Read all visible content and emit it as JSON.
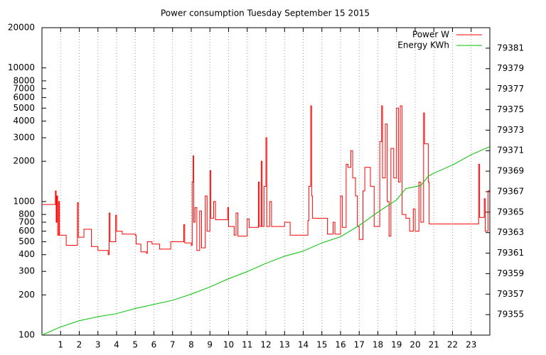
{
  "chart_data": {
    "type": "line",
    "title": "Power consumption Tuesday September 15 2015",
    "xlim": [
      0,
      24
    ],
    "xticks": [
      1,
      2,
      3,
      4,
      5,
      6,
      7,
      8,
      9,
      10,
      11,
      12,
      13,
      14,
      15,
      16,
      17,
      18,
      19,
      20,
      21,
      22,
      23
    ],
    "ylim": [
      100,
      20000
    ],
    "yticks": [
      100,
      200,
      300,
      400,
      500,
      600,
      700,
      800,
      1000,
      2000,
      3000,
      4000,
      5000,
      6000,
      7000,
      8000,
      10000,
      20000
    ],
    "y_scale": "log",
    "y2lim": [
      79353,
      79383
    ],
    "y2ticks": [
      79355,
      79357,
      79359,
      79361,
      79363,
      79365,
      79367,
      79369,
      79371,
      79373,
      79375,
      79377,
      79379,
      79381
    ],
    "grid": "x",
    "legend": "top-right",
    "series": [
      {
        "name": "Power W",
        "color": "#ff0000",
        "steps": true,
        "x": [
          0,
          0.72,
          0.76,
          0.8,
          0.84,
          0.9,
          0.94,
          1.3,
          1.9,
          1.95,
          2.25,
          2.65,
          3.0,
          3.55,
          3.6,
          3.65,
          3.95,
          4.0,
          4.3,
          5.0,
          5.05,
          5.3,
          5.6,
          5.65,
          5.9,
          6.3,
          6.9,
          7.6,
          7.65,
          8.0,
          8.05,
          8.1,
          8.13,
          8.2,
          8.3,
          8.45,
          8.55,
          8.75,
          8.85,
          9.0,
          9.05,
          9.2,
          9.3,
          9.95,
          10.0,
          10.3,
          10.4,
          10.5,
          11.0,
          11.1,
          11.6,
          11.65,
          11.75,
          11.8,
          11.9,
          12.0,
          12.05,
          12.2,
          12.3,
          12.7,
          13.0,
          13.2,
          13.3,
          14.0,
          14.25,
          14.3,
          14.4,
          14.45,
          14.5,
          14.9,
          15.3,
          15.6,
          15.7,
          16.0,
          16.1,
          16.3,
          16.4,
          16.55,
          16.65,
          16.8,
          16.9,
          17.0,
          17.2,
          17.3,
          17.6,
          17.8,
          18.0,
          18.1,
          18.2,
          18.25,
          18.4,
          18.5,
          18.6,
          18.7,
          18.85,
          19.0,
          19.1,
          19.2,
          19.3,
          19.5,
          19.7,
          19.9,
          20.0,
          20.2,
          20.3,
          20.45,
          20.5,
          20.7,
          20.75,
          21.0,
          23.35,
          23.4,
          23.45,
          23.7,
          23.75,
          23.9,
          24
        ],
        "values": [
          950,
          1200,
          700,
          1100,
          560,
          1000,
          560,
          470,
          980,
          540,
          620,
          460,
          430,
          400,
          820,
          500,
          790,
          600,
          570,
          560,
          480,
          420,
          410,
          500,
          480,
          440,
          500,
          670,
          490,
          470,
          1400,
          2200,
          700,
          900,
          430,
          850,
          450,
          1100,
          600,
          1700,
          750,
          1000,
          730,
          900,
          650,
          560,
          820,
          550,
          740,
          640,
          1400,
          650,
          2000,
          650,
          1300,
          3000,
          650,
          1000,
          650,
          650,
          700,
          700,
          560,
          560,
          720,
          1300,
          5200,
          1100,
          750,
          750,
          570,
          700,
          570,
          1100,
          640,
          1900,
          1800,
          2400,
          1500,
          1100,
          650,
          520,
          1200,
          1800,
          1300,
          650,
          650,
          2800,
          5200,
          1500,
          3800,
          1000,
          550,
          2500,
          1500,
          5000,
          1400,
          5200,
          800,
          750,
          600,
          880,
          600,
          1400,
          700,
          4600,
          2700,
          1400,
          680,
          680,
          680,
          1900,
          760,
          1050,
          600,
          1200,
          1200
        ]
      },
      {
        "name": "Energy KWh",
        "color": "#00c000",
        "axis": "y2",
        "x": [
          0,
          1,
          2,
          3,
          4,
          5,
          6,
          7,
          8,
          9,
          10,
          11,
          12,
          13,
          14,
          15,
          16,
          17,
          18,
          19,
          19.5,
          20.3,
          20.7,
          21,
          22,
          23,
          24
        ],
        "values": [
          79353,
          79353.8,
          79354.4,
          79354.8,
          79355.1,
          79355.6,
          79356,
          79356.4,
          79357,
          79357.7,
          79358.5,
          79359.2,
          79360,
          79360.7,
          79361.2,
          79362,
          79362.6,
          79363.7,
          79365,
          79366.2,
          79367.3,
          79367.6,
          79368.5,
          79368.8,
          79369.6,
          79370.6,
          79371.4
        ]
      }
    ]
  }
}
